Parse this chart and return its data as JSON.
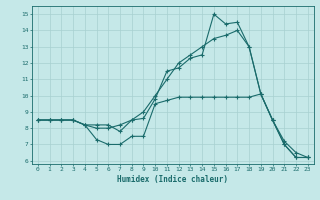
{
  "xlabel": "Humidex (Indice chaleur)",
  "background_color": "#c5e8e8",
  "line_color": "#1a6b6b",
  "grid_color": "#a8d0d0",
  "xlim": [
    -0.5,
    23.5
  ],
  "ylim": [
    5.8,
    15.5
  ],
  "xticks": [
    0,
    1,
    2,
    3,
    4,
    5,
    6,
    7,
    8,
    9,
    10,
    11,
    12,
    13,
    14,
    15,
    16,
    17,
    18,
    19,
    20,
    21,
    22,
    23
  ],
  "yticks": [
    6,
    7,
    8,
    9,
    10,
    11,
    12,
    13,
    14,
    15
  ],
  "lines": [
    {
      "x": [
        0,
        1,
        2,
        3,
        4,
        5,
        6,
        7,
        8,
        9,
        10,
        11,
        12,
        13,
        14,
        15,
        16,
        17,
        18,
        19,
        20,
        21,
        22,
        23
      ],
      "y": [
        8.5,
        8.5,
        8.5,
        8.5,
        8.2,
        8.2,
        8.2,
        7.8,
        8.5,
        8.6,
        9.8,
        11.5,
        11.7,
        12.3,
        12.5,
        15.0,
        14.4,
        14.5,
        13.0,
        10.1,
        8.5,
        7.0,
        6.2,
        6.2
      ]
    },
    {
      "x": [
        0,
        1,
        2,
        3,
        4,
        5,
        6,
        7,
        8,
        9,
        10,
        11,
        12,
        13,
        14,
        15,
        16,
        17,
        18,
        19,
        20,
        21,
        22,
        23
      ],
      "y": [
        8.5,
        8.5,
        8.5,
        8.5,
        8.2,
        8.0,
        8.0,
        8.2,
        8.5,
        9.0,
        10.0,
        11.0,
        12.0,
        12.5,
        13.0,
        13.5,
        13.7,
        14.0,
        13.0,
        10.1,
        8.5,
        7.2,
        6.5,
        6.2
      ]
    },
    {
      "x": [
        0,
        1,
        2,
        3,
        4,
        5,
        6,
        7,
        8,
        9,
        10,
        11,
        12,
        13,
        14,
        15,
        16,
        17,
        18,
        19,
        20,
        21,
        22,
        23
      ],
      "y": [
        8.5,
        8.5,
        8.5,
        8.5,
        8.2,
        7.3,
        7.0,
        7.0,
        7.5,
        7.5,
        9.5,
        9.7,
        9.9,
        9.9,
        9.9,
        9.9,
        9.9,
        9.9,
        9.9,
        10.1,
        8.5,
        7.0,
        6.2,
        6.2
      ]
    }
  ]
}
